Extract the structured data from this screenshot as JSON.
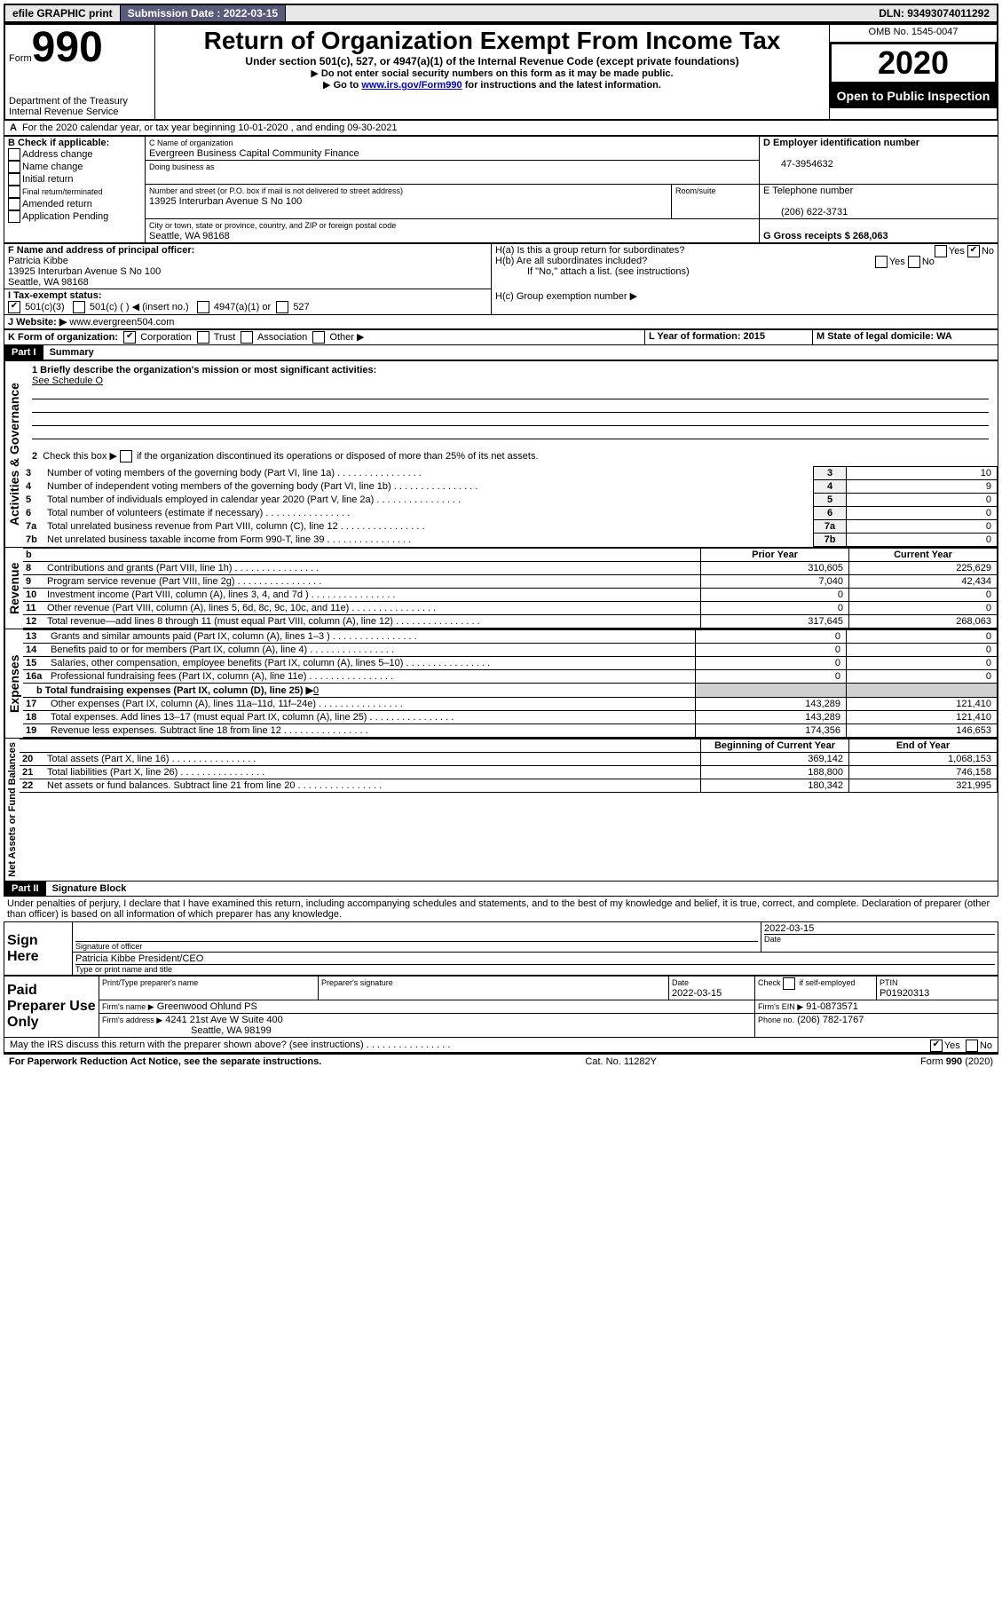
{
  "topbar": {
    "efile": "efile GRAPHIC print",
    "submission_label": "Submission Date : 2022-03-15",
    "dln": "DLN: 93493074011292"
  },
  "header": {
    "form_label": "Form",
    "form_number": "990",
    "dept1": "Department of the Treasury",
    "dept2": "Internal Revenue Service",
    "title": "Return of Organization Exempt From Income Tax",
    "subtitle": "Under section 501(c), 527, or 4947(a)(1) of the Internal Revenue Code (except private foundations)",
    "note1": "Do not enter social security numbers on this form as it may be made public.",
    "note2_pre": "Go to ",
    "note2_link": "www.irs.gov/Form990",
    "note2_post": " for instructions and the latest information.",
    "omb": "OMB No. 1545-0047",
    "year": "2020",
    "open": "Open to Public Inspection"
  },
  "line_a": "For the 2020 calendar year, or tax year beginning 10-01-2020    , and ending 09-30-2021",
  "box_b": {
    "label": "B Check if applicable:",
    "opts": [
      "Address change",
      "Name change",
      "Initial return",
      "Final return/terminated",
      "Amended return",
      "Application Pending"
    ]
  },
  "box_c": {
    "name_label": "C Name of organization",
    "name": "Evergreen Business Capital Community Finance",
    "dba_label": "Doing business as",
    "addr_label": "Number and street (or P.O. box if mail is not delivered to street address)",
    "addr": "13925 Interurban Avenue S No 100",
    "room_label": "Room/suite",
    "city_label": "City or town, state or province, country, and ZIP or foreign postal code",
    "city": "Seattle, WA  98168"
  },
  "box_d": {
    "label": "D Employer identification number",
    "val": "47-3954632"
  },
  "box_e": {
    "label": "E Telephone number",
    "val": "(206) 622-3731"
  },
  "box_g": {
    "label": "G Gross receipts $ 268,063"
  },
  "box_f": {
    "label": "F  Name and address of principal officer:",
    "name": "Patricia Kibbe",
    "addr1": "13925 Interurban Avenue S No 100",
    "addr2": "Seattle, WA  98168"
  },
  "box_h": {
    "ha": "H(a)  Is this a group return for subordinates?",
    "hb": "H(b)  Are all subordinates included?",
    "hb_note": "If \"No,\" attach a list. (see instructions)",
    "hc": "H(c)  Group exemption number ▶",
    "yes": "Yes",
    "no": "No"
  },
  "box_i": {
    "label": "I  Tax-exempt status:",
    "o1": "501(c)(3)",
    "o2": "501(c) (  ) ◀ (insert no.)",
    "o3": "4947(a)(1) or",
    "o4": "527"
  },
  "box_j": {
    "label": "J   Website: ▶",
    "val": " www.evergreen504.com"
  },
  "box_k": {
    "label": "K Form of organization:",
    "o1": "Corporation",
    "o2": "Trust",
    "o3": "Association",
    "o4": "Other ▶"
  },
  "box_l": {
    "label": "L Year of formation: 2015"
  },
  "box_m": {
    "label": "M State of legal domicile: WA"
  },
  "part1": {
    "hdr": "Part I",
    "title": "Summary",
    "vlabel": "Activities & Governance",
    "l1": "1  Briefly describe the organization's mission or most significant activities:",
    "l1v": "See Schedule O",
    "l2": "2   Check this box ▶         if the organization discontinued its operations or disposed of more than 25% of its net assets.",
    "rows": [
      {
        "n": "3",
        "t": "Number of voting members of the governing body (Part VI, line 1a)",
        "v": "10"
      },
      {
        "n": "4",
        "t": "Number of independent voting members of the governing body (Part VI, line 1b)",
        "v": "9"
      },
      {
        "n": "5",
        "t": "Total number of individuals employed in calendar year 2020 (Part V, line 2a)",
        "v": "0"
      },
      {
        "n": "6",
        "t": "Total number of volunteers (estimate if necessary)",
        "v": "0"
      },
      {
        "n": "7a",
        "t": "Total unrelated business revenue from Part VIII, column (C), line 12",
        "v": "0"
      },
      {
        "n": "7b",
        "t": "Net unrelated business taxable income from Form 990-T, line 39",
        "v": "0"
      }
    ]
  },
  "revenue": {
    "vlabel": "Revenue",
    "h_prior": "Prior Year",
    "h_curr": "Current Year",
    "rows": [
      {
        "n": "8",
        "t": "Contributions and grants (Part VIII, line 1h)",
        "p": "310,605",
        "c": "225,629"
      },
      {
        "n": "9",
        "t": "Program service revenue (Part VIII, line 2g)",
        "p": "7,040",
        "c": "42,434"
      },
      {
        "n": "10",
        "t": "Investment income (Part VIII, column (A), lines 3, 4, and 7d )",
        "p": "0",
        "c": "0"
      },
      {
        "n": "11",
        "t": "Other revenue (Part VIII, column (A), lines 5, 6d, 8c, 9c, 10c, and 11e)",
        "p": "0",
        "c": "0"
      },
      {
        "n": "12",
        "t": "Total revenue—add lines 8 through 11 (must equal Part VIII, column (A), line 12)",
        "p": "317,645",
        "c": "268,063"
      }
    ]
  },
  "expenses": {
    "vlabel": "Expenses",
    "rows": [
      {
        "n": "13",
        "t": "Grants and similar amounts paid (Part IX, column (A), lines 1–3 )",
        "p": "0",
        "c": "0"
      },
      {
        "n": "14",
        "t": "Benefits paid to or for members (Part IX, column (A), line 4)",
        "p": "0",
        "c": "0"
      },
      {
        "n": "15",
        "t": "Salaries, other compensation, employee benefits (Part IX, column (A), lines 5–10)",
        "p": "0",
        "c": "0"
      },
      {
        "n": "16a",
        "t": "Professional fundraising fees (Part IX, column (A), line 11e)",
        "p": "0",
        "c": "0"
      }
    ],
    "l16b": "b  Total fundraising expenses (Part IX, column (D), line 25) ▶",
    "l16bv": "0",
    "rows2": [
      {
        "n": "17",
        "t": "Other expenses (Part IX, column (A), lines 11a–11d, 11f–24e)",
        "p": "143,289",
        "c": "121,410"
      },
      {
        "n": "18",
        "t": "Total expenses. Add lines 13–17 (must equal Part IX, column (A), line 25)",
        "p": "143,289",
        "c": "121,410"
      },
      {
        "n": "19",
        "t": "Revenue less expenses. Subtract line 18 from line 12",
        "p": "174,356",
        "c": "146,653"
      }
    ]
  },
  "netassets": {
    "vlabel": "Net Assets or Fund Balances",
    "h_beg": "Beginning of Current Year",
    "h_end": "End of Year",
    "rows": [
      {
        "n": "20",
        "t": "Total assets (Part X, line 16)",
        "p": "369,142",
        "c": "1,068,153"
      },
      {
        "n": "21",
        "t": "Total liabilities (Part X, line 26)",
        "p": "188,800",
        "c": "746,158"
      },
      {
        "n": "22",
        "t": "Net assets or fund balances. Subtract line 21 from line 20",
        "p": "180,342",
        "c": "321,995"
      }
    ]
  },
  "part2": {
    "hdr": "Part II",
    "title": "Signature Block",
    "decl": "Under penalties of perjury, I declare that I have examined this return, including accompanying schedules and statements, and to the best of my knowledge and belief, it is true, correct, and complete. Declaration of preparer (other than officer) is based on all information of which preparer has any knowledge."
  },
  "sign": {
    "here": "Sign Here",
    "sig_label": "Signature of officer",
    "date_label": "Date",
    "date": "2022-03-15",
    "name": "Patricia Kibbe  President/CEO",
    "type_label": "Type or print name and title"
  },
  "paid": {
    "label": "Paid Preparer Use Only",
    "h_name": "Print/Type preparer's name",
    "h_sig": "Preparer's signature",
    "h_date": "Date",
    "date": "2022-03-15",
    "check_label": "Check         if self-employed",
    "ptin_l": "PTIN",
    "ptin": "P01920313",
    "firm_l": "Firm's name    ▶",
    "firm": "Greenwood Ohlund PS",
    "ein_l": "Firm's EIN ▶",
    "ein": "91-0873571",
    "addr_l": "Firm's address ▶",
    "addr1": "4241 21st Ave W Suite 400",
    "addr2": "Seattle, WA  98199",
    "phone_l": "Phone no.",
    "phone": "(206) 782-1767"
  },
  "footer": {
    "discuss": "May the IRS discuss this return with the preparer shown above? (see instructions)",
    "yes": "Yes",
    "no": "No",
    "pra": "For Paperwork Reduction Act Notice, see the separate instructions.",
    "cat": "Cat. No. 11282Y",
    "form": "Form 990 (2020)"
  }
}
